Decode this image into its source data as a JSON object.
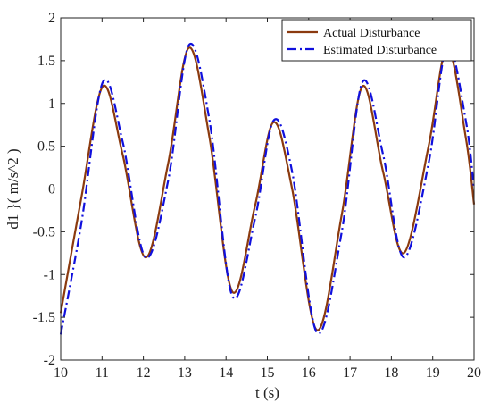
{
  "chart_data": {
    "type": "line",
    "xlabel": "t (s)",
    "ylabel": "d1 }( m/s^2 )",
    "xlim": [
      10,
      20
    ],
    "ylim": [
      -2,
      2
    ],
    "xticks": [
      "10",
      "11",
      "12",
      "13",
      "14",
      "15",
      "16",
      "17",
      "18",
      "19",
      "20"
    ],
    "yticks": [
      "-2",
      "-1.5",
      "-1",
      "-0.5",
      "0",
      "0.5",
      "1",
      "1.5",
      "2"
    ],
    "grid": false,
    "legend_position": "top-right",
    "x": [
      10.0,
      10.5,
      11.02,
      11.5,
      12.05,
      12.6,
      13.1,
      13.6,
      14.15,
      14.7,
      15.15,
      15.6,
      16.2,
      16.8,
      17.3,
      17.8,
      18.3,
      18.9,
      19.35,
      19.8,
      20.0
    ],
    "series": [
      {
        "name": "Actual Disturbance",
        "color": "#8B3A0F",
        "style": "solid",
        "values": [
          -1.45,
          -0.1,
          1.2,
          0.4,
          -0.8,
          0.3,
          1.65,
          0.6,
          -1.2,
          -0.2,
          0.78,
          0.0,
          -1.65,
          -0.3,
          1.2,
          0.2,
          -0.75,
          0.5,
          1.65,
          0.6,
          -0.18
        ]
      },
      {
        "name": "Estimated Disturbance",
        "color": "#1010DD",
        "style": "dash-dot",
        "values": [
          -1.7,
          -0.4,
          1.25,
          0.55,
          -0.8,
          0.1,
          1.68,
          0.8,
          -1.25,
          -0.35,
          0.8,
          0.2,
          -1.68,
          -0.5,
          1.25,
          0.4,
          -0.8,
          0.3,
          1.68,
          0.8,
          0.0
        ]
      }
    ]
  }
}
